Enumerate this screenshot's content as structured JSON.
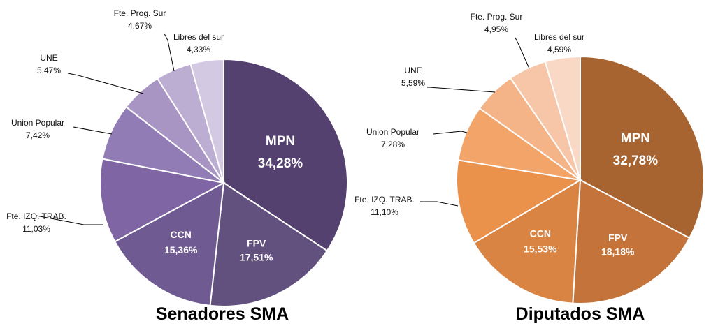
{
  "chart_data": [
    {
      "type": "pie",
      "title": "Senadores SMA",
      "categories": [
        "MPN",
        "FPV",
        "CCN",
        "Fte. IZQ. TRAB.",
        "Union Popular",
        "UNE",
        "Fte. Prog. Sur",
        "Libres del sur"
      ],
      "values": [
        34.28,
        17.51,
        15.36,
        11.03,
        7.42,
        5.47,
        4.67,
        4.33
      ],
      "value_labels": [
        "34,28%",
        "17,51%",
        "15,36%",
        "11,03%",
        "7,42%",
        "5,47%",
        "4,67%",
        "4,33%"
      ],
      "colors": [
        "#54416f",
        "#62507f",
        "#6f5a92",
        "#7f65a4",
        "#927cb5",
        "#a895c3",
        "#bcadd2",
        "#d3c9e2"
      ],
      "label_placement": [
        "inside",
        "inside",
        "inside",
        "outside",
        "outside",
        "outside",
        "outside",
        "outside"
      ]
    },
    {
      "type": "pie",
      "title": "Diputados SMA",
      "categories": [
        "MPN",
        "FPV",
        "CCN",
        "Fte. IZQ. TRAB.",
        "Union Popular",
        "UNE",
        "Fte. Prog. Sur",
        "Libres del sur"
      ],
      "values": [
        32.78,
        18.18,
        15.53,
        11.1,
        7.28,
        5.59,
        4.95,
        4.59
      ],
      "value_labels": [
        "32,78%",
        "18,18%",
        "15,53%",
        "11,10%",
        "7,28%",
        "5,59%",
        "4,95%",
        "4,59%"
      ],
      "colors": [
        "#a86430",
        "#c4733a",
        "#da8443",
        "#ea914c",
        "#f3a468",
        "#f5b388",
        "#f7c6a8",
        "#f9d8c6"
      ],
      "label_placement": [
        "inside",
        "inside",
        "inside",
        "outside",
        "outside",
        "outside",
        "outside",
        "outside"
      ]
    }
  ]
}
